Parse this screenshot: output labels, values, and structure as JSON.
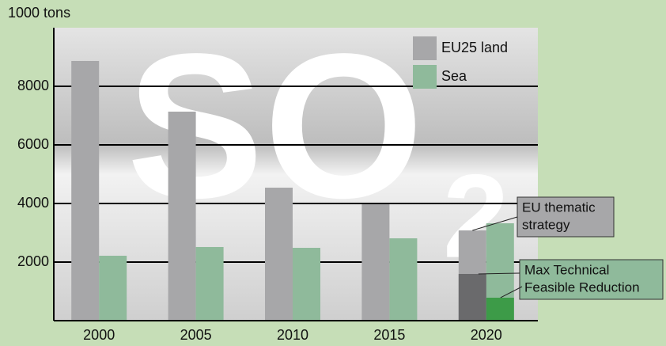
{
  "chart_data": {
    "type": "bar",
    "y_label": "1000 tons",
    "watermark": {
      "main": "SO",
      "sub": "2"
    },
    "categories": [
      "2000",
      "2005",
      "2010",
      "2015",
      "2020"
    ],
    "series": [
      {
        "name": "EU25 land",
        "color": "#a7a7a9",
        "values": [
          8865,
          7135,
          4540,
          3973,
          3081
        ]
      },
      {
        "name": "Sea",
        "color": "#8fba9b",
        "values": [
          2216,
          2514,
          2486,
          2811,
          3324
        ]
      }
    ],
    "overlay_series": [
      {
        "color": "#6a6a6c",
        "values": [
          null,
          null,
          null,
          null,
          1595
        ]
      },
      {
        "color": "#3d9b48",
        "values": [
          null,
          null,
          null,
          null,
          784
        ]
      }
    ],
    "annotations": [
      {
        "lines": [
          "EU thematic",
          "strategy"
        ],
        "color": "#a7a7a9"
      },
      {
        "lines": [
          "Max Technical",
          "Feasible Reduction"
        ],
        "color": "#8fba9b"
      }
    ],
    "ylim": [
      0,
      10000
    ],
    "yticks": [
      2000,
      4000,
      6000,
      8000
    ],
    "grid": true
  }
}
